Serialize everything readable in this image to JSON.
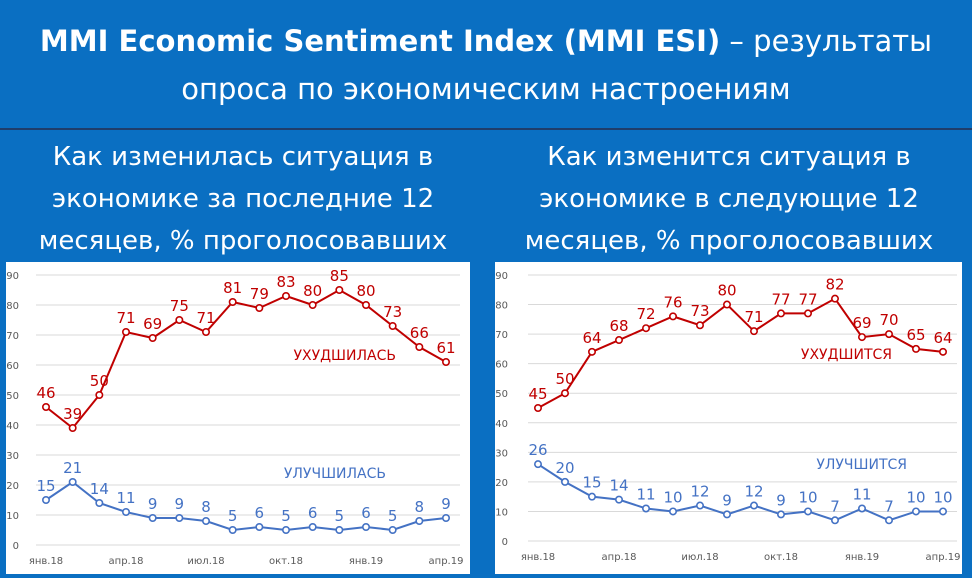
{
  "header": {
    "title_bold": "MMI Economic Sentiment Index (MMI ESI)",
    "title_rest": " – результаты",
    "title_line2": "опроса по экономическим настроениям"
  },
  "left": {
    "subtitle_lines": [
      "Как изменилась ситуация в",
      "экономике за последние 12",
      "месяцев, % проголосовавших"
    ]
  },
  "right": {
    "subtitle_lines": [
      "Как изменится ситуация в",
      "экономике в следующие 12",
      "месяцев, % проголосовавших"
    ]
  },
  "colors": {
    "red": "#c00000",
    "blue": "#4472c4",
    "grid": "#d9d9d9",
    "header_bg": "#0a6fc2"
  },
  "chart_data": [
    {
      "type": "line",
      "x": [
        "янв.18",
        "фев.18",
        "мар.18",
        "апр.18",
        "май.18",
        "июн.18",
        "июл.18",
        "авг.18",
        "сен.18",
        "окт.18",
        "ноя.18",
        "дек.18",
        "янв.19",
        "фев.19",
        "мар.19",
        "апр.19"
      ],
      "x_tick_labels": [
        "янв.18",
        "апр.18",
        "июл.18",
        "окт.18",
        "янв.19",
        "апр.19"
      ],
      "x_tick_indices": [
        0,
        3,
        6,
        9,
        12,
        15
      ],
      "ylim": [
        0,
        90
      ],
      "y_ticks": [
        0,
        10,
        20,
        30,
        40,
        50,
        60,
        70,
        80,
        90
      ],
      "grid": true,
      "series": [
        {
          "name": "УХУДШИЛАСЬ",
          "color": "#c00000",
          "values": [
            46,
            39,
            50,
            71,
            69,
            75,
            71,
            81,
            79,
            83,
            80,
            85,
            80,
            73,
            66,
            61
          ]
        },
        {
          "name": "УЛУЧШИЛАСЬ",
          "color": "#4472c4",
          "values": [
            15,
            21,
            14,
            11,
            9,
            9,
            8,
            5,
            6,
            5,
            6,
            5,
            6,
            5,
            8,
            9
          ]
        }
      ]
    },
    {
      "type": "line",
      "x": [
        "янв.18",
        "фев.18",
        "мар.18",
        "апр.18",
        "май.18",
        "июн.18",
        "июл.18",
        "авг.18",
        "сен.18",
        "окт.18",
        "ноя.18",
        "дек.18",
        "янв.19",
        "фев.19",
        "мар.19",
        "апр.19"
      ],
      "x_tick_labels": [
        "янв.18",
        "апр.18",
        "июл.18",
        "окт.18",
        "янв.19",
        "апр.19"
      ],
      "x_tick_indices": [
        0,
        3,
        6,
        9,
        12,
        15
      ],
      "ylim": [
        0,
        90
      ],
      "y_ticks": [
        0,
        10,
        20,
        30,
        40,
        50,
        60,
        70,
        80,
        90
      ],
      "grid": true,
      "series": [
        {
          "name": "УХУДШИТСЯ",
          "color": "#c00000",
          "values": [
            45,
            50,
            64,
            68,
            72,
            76,
            73,
            80,
            71,
            77,
            77,
            82,
            69,
            70,
            65,
            64
          ]
        },
        {
          "name": "УЛУЧШИТСЯ",
          "color": "#4472c4",
          "values": [
            26,
            20,
            15,
            14,
            11,
            10,
            12,
            9,
            12,
            9,
            10,
            7,
            11,
            7,
            10,
            10
          ]
        }
      ]
    }
  ]
}
